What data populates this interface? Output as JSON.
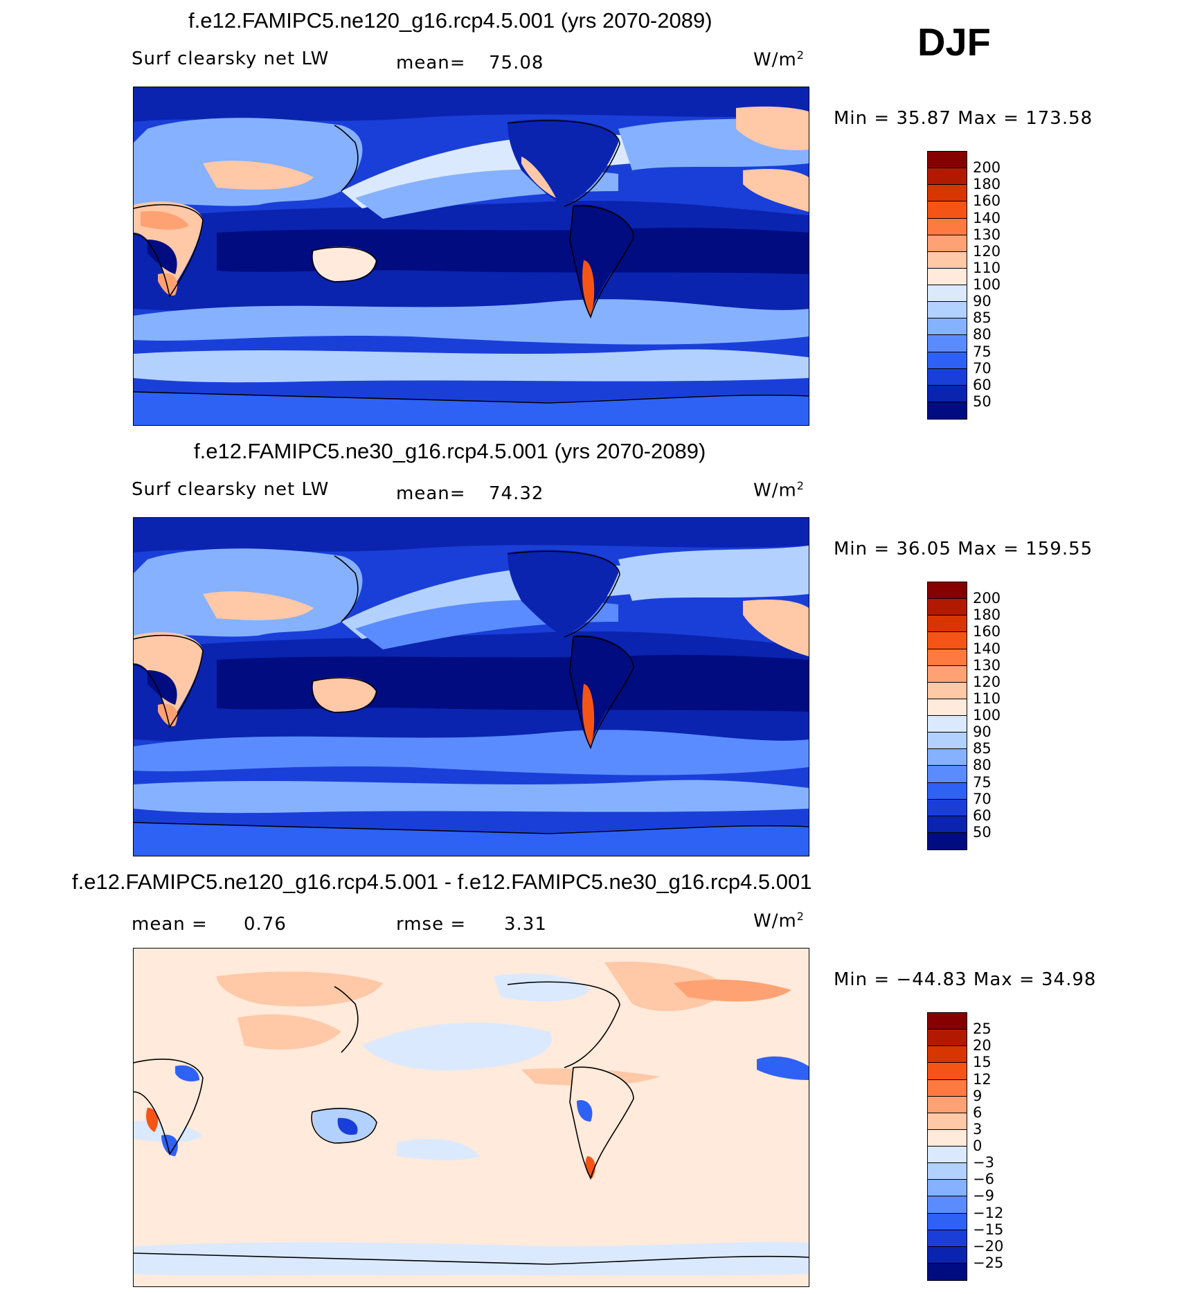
{
  "season": "DJF",
  "panels": [
    {
      "title": "f.e12.FAMIPC5.ne120_g16.rcp4.5.001 (yrs 2070-2089)",
      "left_label": "Surf clearsky net LW",
      "stat_label": "mean=",
      "stat_value": "75.08",
      "stat2_label": "",
      "stat2_value": "",
      "units": "W/m",
      "units_sup": "2",
      "minmax": "Min =   35.87 Max =  173.58",
      "colorbar": {
        "labels": [
          "200",
          "180",
          "160",
          "140",
          "130",
          "120",
          "110",
          "100",
          "90",
          "85",
          "80",
          "75",
          "70",
          "60",
          "50"
        ],
        "colors": [
          "#870000",
          "#b21a00",
          "#d83600",
          "#f45517",
          "#ff7a40",
          "#ffa273",
          "#ffc8a6",
          "#ffeadb",
          "#dbe9ff",
          "#b3d1ff",
          "#85b1ff",
          "#5a8cff",
          "#2e62f5",
          "#1a3fd8",
          "#0a24b0",
          "#000c80"
        ]
      }
    },
    {
      "title": "f.e12.FAMIPC5.ne30_g16.rcp4.5.001 (yrs 2070-2089)",
      "left_label": "Surf clearsky net LW",
      "stat_label": "mean=",
      "stat_value": "74.32",
      "stat2_label": "",
      "stat2_value": "",
      "units": "W/m",
      "units_sup": "2",
      "minmax": "Min =   36.05 Max =  159.55",
      "colorbar": {
        "labels": [
          "200",
          "180",
          "160",
          "140",
          "130",
          "120",
          "110",
          "100",
          "90",
          "85",
          "80",
          "75",
          "70",
          "60",
          "50"
        ],
        "colors": [
          "#870000",
          "#b21a00",
          "#d83600",
          "#f45517",
          "#ff7a40",
          "#ffa273",
          "#ffc8a6",
          "#ffeadb",
          "#dbe9ff",
          "#b3d1ff",
          "#85b1ff",
          "#5a8cff",
          "#2e62f5",
          "#1a3fd8",
          "#0a24b0",
          "#000c80"
        ]
      }
    },
    {
      "title": "f.e12.FAMIPC5.ne120_g16.rcp4.5.001 - f.e12.FAMIPC5.ne30_g16.rcp4.5.001",
      "left_label": "mean =",
      "stat_label": "",
      "stat_value": "0.76",
      "stat2_label": "rmse =",
      "stat2_value": "3.31",
      "units": "W/m",
      "units_sup": "2",
      "minmax": "Min = −44.83 Max =   34.98",
      "colorbar": {
        "labels": [
          "25",
          "20",
          "15",
          "12",
          "9",
          "6",
          "3",
          "0",
          "−3",
          "−6",
          "−9",
          "−12",
          "−15",
          "−20",
          "−25"
        ],
        "colors": [
          "#870000",
          "#b21a00",
          "#d83600",
          "#f45517",
          "#ff7a40",
          "#ffa273",
          "#ffc8a6",
          "#ffeadb",
          "#dbe9ff",
          "#b3d1ff",
          "#85b1ff",
          "#5a8cff",
          "#2e62f5",
          "#1a3fd8",
          "#0a24b0",
          "#000c80"
        ]
      }
    }
  ],
  "colors": {
    "ocean_deep": "#0a24b0",
    "ocean_mid": "#2e62f5",
    "ocean_light": "#85b1ff",
    "pale_blue": "#dbe9ff",
    "land_warm": "#ffc8a6",
    "land_hot": "#f45517",
    "diff_bg": "#ffeadb"
  }
}
